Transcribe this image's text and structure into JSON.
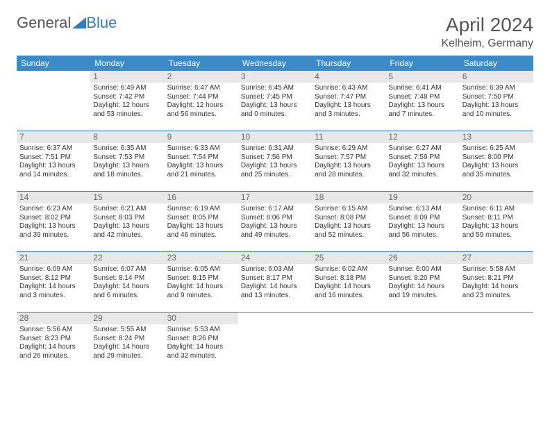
{
  "logo": {
    "text1": "General",
    "text2": "Blue"
  },
  "title": "April 2024",
  "location": "Kelheim, Germany",
  "colors": {
    "header_bg": "#3b8bc9",
    "header_text": "#ffffff",
    "daynum_bg": "#e8e8e8",
    "daynum_text": "#666666",
    "rule": "#2d7dc0",
    "body_text": "#333333",
    "title_text": "#555555",
    "logo_blue": "#2d7dc0"
  },
  "weekdays": [
    "Sunday",
    "Monday",
    "Tuesday",
    "Wednesday",
    "Thursday",
    "Friday",
    "Saturday"
  ],
  "weeks": [
    [
      {
        "day": "",
        "lines": []
      },
      {
        "day": "1",
        "lines": [
          "Sunrise: 6:49 AM",
          "Sunset: 7:42 PM",
          "Daylight: 12 hours",
          "and 53 minutes."
        ]
      },
      {
        "day": "2",
        "lines": [
          "Sunrise: 6:47 AM",
          "Sunset: 7:44 PM",
          "Daylight: 12 hours",
          "and 56 minutes."
        ]
      },
      {
        "day": "3",
        "lines": [
          "Sunrise: 6:45 AM",
          "Sunset: 7:45 PM",
          "Daylight: 13 hours",
          "and 0 minutes."
        ]
      },
      {
        "day": "4",
        "lines": [
          "Sunrise: 6:43 AM",
          "Sunset: 7:47 PM",
          "Daylight: 13 hours",
          "and 3 minutes."
        ]
      },
      {
        "day": "5",
        "lines": [
          "Sunrise: 6:41 AM",
          "Sunset: 7:48 PM",
          "Daylight: 13 hours",
          "and 7 minutes."
        ]
      },
      {
        "day": "6",
        "lines": [
          "Sunrise: 6:39 AM",
          "Sunset: 7:50 PM",
          "Daylight: 13 hours",
          "and 10 minutes."
        ]
      }
    ],
    [
      {
        "day": "7",
        "lines": [
          "Sunrise: 6:37 AM",
          "Sunset: 7:51 PM",
          "Daylight: 13 hours",
          "and 14 minutes."
        ]
      },
      {
        "day": "8",
        "lines": [
          "Sunrise: 6:35 AM",
          "Sunset: 7:53 PM",
          "Daylight: 13 hours",
          "and 18 minutes."
        ]
      },
      {
        "day": "9",
        "lines": [
          "Sunrise: 6:33 AM",
          "Sunset: 7:54 PM",
          "Daylight: 13 hours",
          "and 21 minutes."
        ]
      },
      {
        "day": "10",
        "lines": [
          "Sunrise: 6:31 AM",
          "Sunset: 7:56 PM",
          "Daylight: 13 hours",
          "and 25 minutes."
        ]
      },
      {
        "day": "11",
        "lines": [
          "Sunrise: 6:29 AM",
          "Sunset: 7:57 PM",
          "Daylight: 13 hours",
          "and 28 minutes."
        ]
      },
      {
        "day": "12",
        "lines": [
          "Sunrise: 6:27 AM",
          "Sunset: 7:59 PM",
          "Daylight: 13 hours",
          "and 32 minutes."
        ]
      },
      {
        "day": "13",
        "lines": [
          "Sunrise: 6:25 AM",
          "Sunset: 8:00 PM",
          "Daylight: 13 hours",
          "and 35 minutes."
        ]
      }
    ],
    [
      {
        "day": "14",
        "lines": [
          "Sunrise: 6:23 AM",
          "Sunset: 8:02 PM",
          "Daylight: 13 hours",
          "and 39 minutes."
        ]
      },
      {
        "day": "15",
        "lines": [
          "Sunrise: 6:21 AM",
          "Sunset: 8:03 PM",
          "Daylight: 13 hours",
          "and 42 minutes."
        ]
      },
      {
        "day": "16",
        "lines": [
          "Sunrise: 6:19 AM",
          "Sunset: 8:05 PM",
          "Daylight: 13 hours",
          "and 46 minutes."
        ]
      },
      {
        "day": "17",
        "lines": [
          "Sunrise: 6:17 AM",
          "Sunset: 8:06 PM",
          "Daylight: 13 hours",
          "and 49 minutes."
        ]
      },
      {
        "day": "18",
        "lines": [
          "Sunrise: 6:15 AM",
          "Sunset: 8:08 PM",
          "Daylight: 13 hours",
          "and 52 minutes."
        ]
      },
      {
        "day": "19",
        "lines": [
          "Sunrise: 6:13 AM",
          "Sunset: 8:09 PM",
          "Daylight: 13 hours",
          "and 56 minutes."
        ]
      },
      {
        "day": "20",
        "lines": [
          "Sunrise: 6:11 AM",
          "Sunset: 8:11 PM",
          "Daylight: 13 hours",
          "and 59 minutes."
        ]
      }
    ],
    [
      {
        "day": "21",
        "lines": [
          "Sunrise: 6:09 AM",
          "Sunset: 8:12 PM",
          "Daylight: 14 hours",
          "and 3 minutes."
        ]
      },
      {
        "day": "22",
        "lines": [
          "Sunrise: 6:07 AM",
          "Sunset: 8:14 PM",
          "Daylight: 14 hours",
          "and 6 minutes."
        ]
      },
      {
        "day": "23",
        "lines": [
          "Sunrise: 6:05 AM",
          "Sunset: 8:15 PM",
          "Daylight: 14 hours",
          "and 9 minutes."
        ]
      },
      {
        "day": "24",
        "lines": [
          "Sunrise: 6:03 AM",
          "Sunset: 8:17 PM",
          "Daylight: 14 hours",
          "and 13 minutes."
        ]
      },
      {
        "day": "25",
        "lines": [
          "Sunrise: 6:02 AM",
          "Sunset: 8:18 PM",
          "Daylight: 14 hours",
          "and 16 minutes."
        ]
      },
      {
        "day": "26",
        "lines": [
          "Sunrise: 6:00 AM",
          "Sunset: 8:20 PM",
          "Daylight: 14 hours",
          "and 19 minutes."
        ]
      },
      {
        "day": "27",
        "lines": [
          "Sunrise: 5:58 AM",
          "Sunset: 8:21 PM",
          "Daylight: 14 hours",
          "and 23 minutes."
        ]
      }
    ],
    [
      {
        "day": "28",
        "lines": [
          "Sunrise: 5:56 AM",
          "Sunset: 8:23 PM",
          "Daylight: 14 hours",
          "and 26 minutes."
        ]
      },
      {
        "day": "29",
        "lines": [
          "Sunrise: 5:55 AM",
          "Sunset: 8:24 PM",
          "Daylight: 14 hours",
          "and 29 minutes."
        ]
      },
      {
        "day": "30",
        "lines": [
          "Sunrise: 5:53 AM",
          "Sunset: 8:26 PM",
          "Daylight: 14 hours",
          "and 32 minutes."
        ]
      },
      {
        "day": "",
        "lines": []
      },
      {
        "day": "",
        "lines": []
      },
      {
        "day": "",
        "lines": []
      },
      {
        "day": "",
        "lines": []
      }
    ]
  ]
}
